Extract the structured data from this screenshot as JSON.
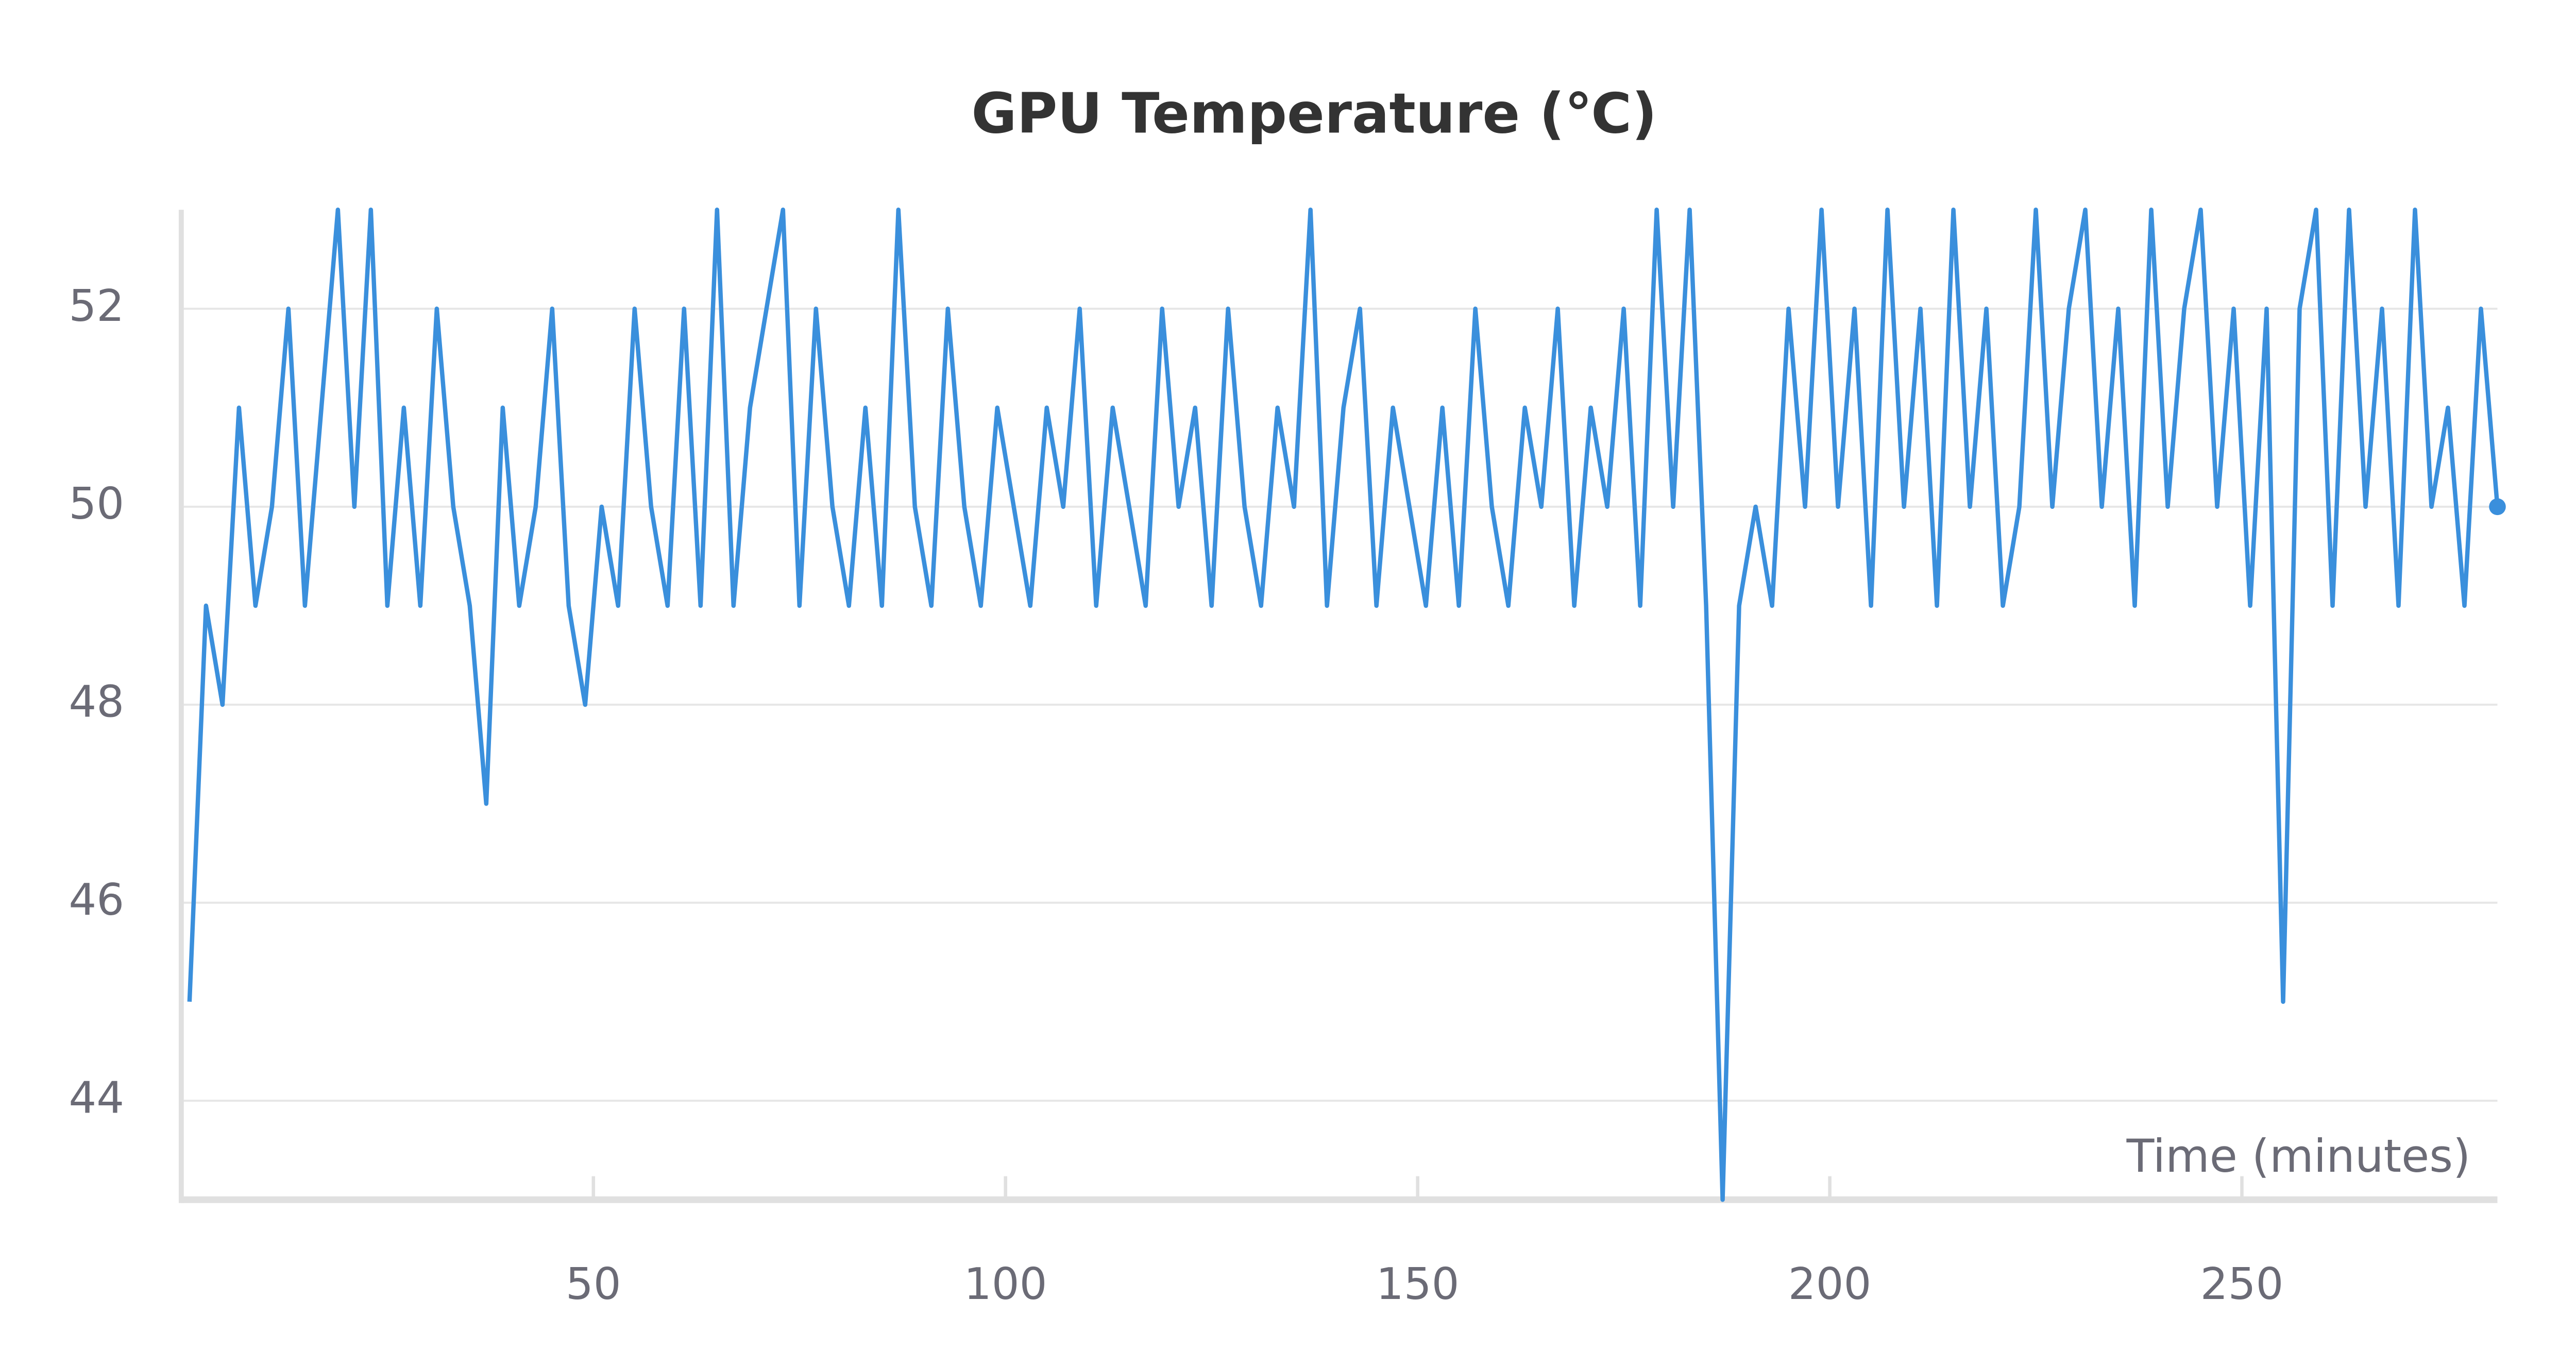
{
  "chart_data": {
    "type": "line",
    "title": "GPU Temperature (℃)",
    "x_label": "Time (minutes)",
    "x": [
      1,
      3,
      5,
      7,
      9,
      11,
      13,
      15,
      17,
      19,
      21,
      23,
      25,
      27,
      29,
      31,
      33,
      35,
      37,
      39,
      41,
      43,
      45,
      47,
      49,
      51,
      53,
      55,
      57,
      59,
      61,
      63,
      65,
      67,
      69,
      71,
      73,
      75,
      77,
      79,
      81,
      83,
      85,
      87,
      89,
      91,
      93,
      95,
      97,
      99,
      101,
      103,
      105,
      107,
      109,
      111,
      113,
      115,
      117,
      119,
      121,
      123,
      125,
      127,
      129,
      131,
      133,
      135,
      137,
      139,
      141,
      143,
      145,
      147,
      149,
      151,
      153,
      155,
      157,
      159,
      161,
      163,
      165,
      167,
      169,
      171,
      173,
      175,
      177,
      179,
      181,
      183,
      185,
      187,
      189,
      191,
      193,
      195,
      197,
      199,
      201,
      203,
      205,
      207,
      209,
      211,
      213,
      215,
      217,
      219,
      221,
      223,
      225,
      227,
      229,
      231,
      233,
      235,
      237,
      239,
      241,
      243,
      245,
      247,
      249,
      251,
      253,
      255,
      257,
      259,
      261,
      263,
      265,
      267,
      269,
      271,
      273,
      275,
      277,
      279,
      281
    ],
    "values": [
      45,
      49,
      48,
      51,
      49,
      50,
      52,
      49,
      51,
      53,
      50,
      53,
      49,
      51,
      49,
      52,
      50,
      49,
      47,
      51,
      49,
      50,
      52,
      49,
      48,
      50,
      49,
      52,
      50,
      49,
      52,
      49,
      53,
      49,
      51,
      52,
      53,
      49,
      52,
      50,
      49,
      51,
      49,
      53,
      50,
      49,
      52,
      50,
      49,
      51,
      50,
      49,
      51,
      50,
      52,
      49,
      51,
      50,
      49,
      52,
      50,
      51,
      49,
      52,
      50,
      49,
      51,
      50,
      53,
      49,
      51,
      52,
      49,
      51,
      50,
      49,
      51,
      49,
      52,
      50,
      49,
      51,
      50,
      52,
      49,
      51,
      50,
      52,
      49,
      53,
      50,
      53,
      49,
      43,
      49,
      50,
      49,
      52,
      50,
      53,
      50,
      52,
      49,
      53,
      50,
      52,
      49,
      53,
      50,
      52,
      49,
      50,
      53,
      50,
      52,
      53,
      50,
      52,
      49,
      53,
      50,
      52,
      53,
      50,
      52,
      49,
      52,
      45,
      52,
      53,
      49,
      53,
      50,
      52,
      49,
      53,
      50,
      51,
      49,
      52,
      50
    ],
    "color": "#3a8fdc",
    "xlim": [
      0,
      281
    ],
    "ylim": [
      43,
      53
    ],
    "xticks": [
      50,
      100,
      150,
      200,
      250
    ],
    "yticks": [
      44,
      46,
      48,
      50,
      52
    ],
    "grid": true
  }
}
